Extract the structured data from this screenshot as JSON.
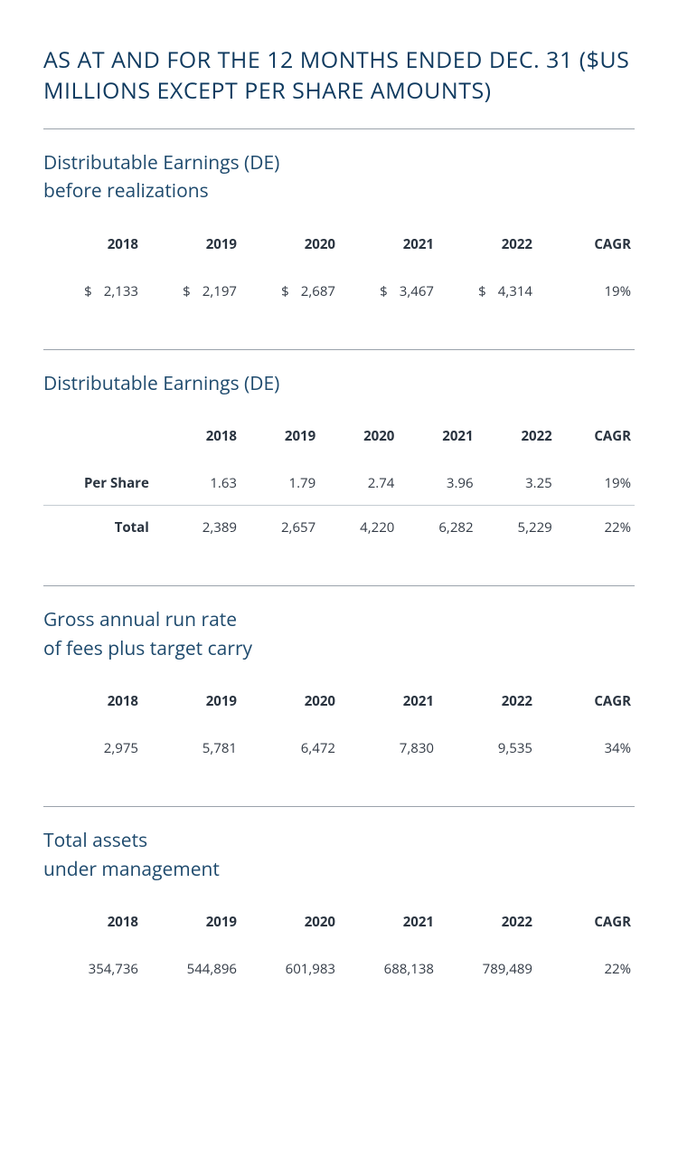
{
  "colors": {
    "title": "#0f3a5f",
    "section": "#1e4a6d",
    "header": "#2a3440",
    "body": "#333b46",
    "rule": "#9aa2ab",
    "rowBorder": "#c5cbd1",
    "background": "#ffffff"
  },
  "typography": {
    "titleSize": 25,
    "sectionSize": 21,
    "tableSize": 15
  },
  "title": "AS AT AND FOR THE 12 MONTHS ENDED DEC. 31 ($US MILLIONS EXCEPT PER SHARE AMOUNTS)",
  "yearHeaders": [
    "2018",
    "2019",
    "2020",
    "2021",
    "2022",
    "CAGR"
  ],
  "sections": [
    {
      "title": "Distributable Earnings (DE)\nbefore realizations",
      "hasRowLabels": false,
      "dollarPrefix": true,
      "rows": [
        {
          "label": "",
          "values": [
            "2,133",
            "2,197",
            "2,687",
            "3,467",
            "4,314",
            "19%"
          ]
        }
      ]
    },
    {
      "title": "Distributable Earnings (DE)",
      "hasRowLabels": true,
      "dollarPrefix": false,
      "rows": [
        {
          "label": "Per Share",
          "values": [
            "1.63",
            "1.79",
            "2.74",
            "3.96",
            "3.25",
            "19%"
          ],
          "bordered": true
        },
        {
          "label": "Total",
          "values": [
            "2,389",
            "2,657",
            "4,220",
            "6,282",
            "5,229",
            "22%"
          ]
        }
      ]
    },
    {
      "title": "Gross annual run rate\nof fees plus target carry",
      "hasRowLabels": false,
      "dollarPrefix": false,
      "rows": [
        {
          "label": "",
          "values": [
            "2,975",
            "5,781",
            "6,472",
            "7,830",
            "9,535",
            "34%"
          ]
        }
      ]
    },
    {
      "title": "Total assets\nunder management",
      "hasRowLabels": false,
      "dollarPrefix": false,
      "rows": [
        {
          "label": "",
          "values": [
            "354,736",
            "544,896",
            "601,983",
            "688,138",
            "789,489",
            "22%"
          ]
        }
      ]
    }
  ]
}
